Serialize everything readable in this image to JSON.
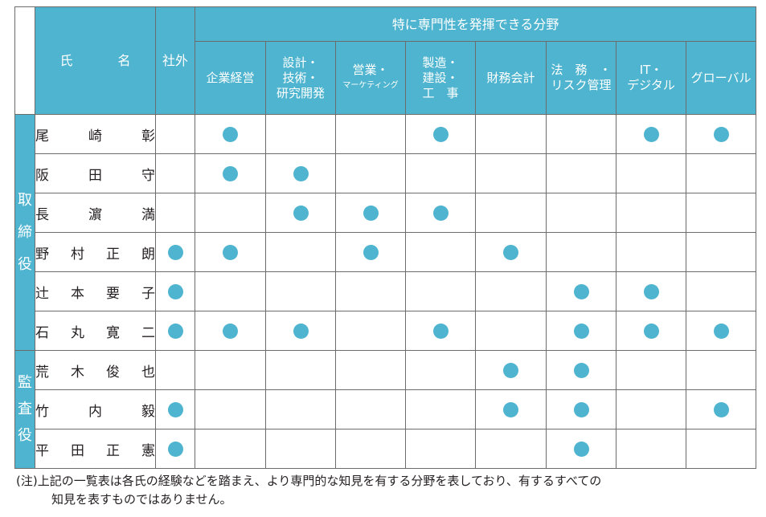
{
  "header": {
    "name_label_1": "氏",
    "name_label_2": "名",
    "external_label": "社外",
    "expertise_title": "特に専門性を発揮できる分野",
    "fields": [
      {
        "lines": [
          "企業経営"
        ]
      },
      {
        "lines": [
          "設計・",
          "技術・",
          "研究開発"
        ]
      },
      {
        "lines": [
          "営業・",
          "マーケティング"
        ]
      },
      {
        "lines": [
          "製造・",
          "建設・",
          "工　事"
        ]
      },
      {
        "lines": [
          "財務会計"
        ]
      },
      {
        "lines": [
          "法　務　・",
          "リスク管理"
        ]
      },
      {
        "lines": [
          "IT・",
          "デジタル"
        ]
      },
      {
        "lines": [
          "グローバル"
        ]
      }
    ]
  },
  "groups": [
    {
      "label": "取締役",
      "chars": [
        "取",
        "締",
        "役"
      ]
    },
    {
      "label": "監査役",
      "chars": [
        "監",
        "査",
        "役"
      ]
    }
  ],
  "rows": [
    {
      "group": 0,
      "name": [
        "尾",
        "崎",
        "彰"
      ],
      "external": false,
      "marks": [
        true,
        false,
        false,
        true,
        false,
        false,
        true,
        true
      ]
    },
    {
      "group": 0,
      "name": [
        "阪",
        "田",
        "守"
      ],
      "external": false,
      "marks": [
        true,
        true,
        false,
        false,
        false,
        false,
        false,
        false
      ]
    },
    {
      "group": 0,
      "name": [
        "長",
        "濵",
        "満"
      ],
      "external": false,
      "marks": [
        false,
        true,
        true,
        true,
        false,
        false,
        false,
        false
      ]
    },
    {
      "group": 0,
      "name": [
        "野",
        "村",
        "正",
        "朗"
      ],
      "external": true,
      "marks": [
        true,
        false,
        true,
        false,
        true,
        false,
        false,
        false
      ]
    },
    {
      "group": 0,
      "name": [
        "辻",
        "本",
        "要",
        "子"
      ],
      "external": true,
      "marks": [
        false,
        false,
        false,
        false,
        false,
        true,
        true,
        false
      ]
    },
    {
      "group": 0,
      "name": [
        "石",
        "丸",
        "寛",
        "二"
      ],
      "external": true,
      "marks": [
        true,
        true,
        false,
        true,
        false,
        true,
        true,
        true
      ]
    },
    {
      "group": 1,
      "name": [
        "荒",
        "木",
        "俊",
        "也"
      ],
      "external": false,
      "marks": [
        false,
        false,
        false,
        false,
        true,
        true,
        false,
        false
      ]
    },
    {
      "group": 1,
      "name": [
        "竹",
        "内",
        "毅"
      ],
      "external": true,
      "marks": [
        false,
        false,
        false,
        false,
        true,
        true,
        false,
        true
      ]
    },
    {
      "group": 1,
      "name": [
        "平",
        "田",
        "正",
        "憲"
      ],
      "external": true,
      "marks": [
        false,
        false,
        false,
        false,
        false,
        true,
        false,
        false
      ]
    }
  ],
  "note": {
    "line1": "(注)上記の一覧表は各氏の経験などを踏まえ、より専門的な知見を有する分野を表しており、有するすべての",
    "line2": "知見を表すものではありません。"
  },
  "colors": {
    "accent": "#4fb4cf",
    "border": "#6c6c6c"
  }
}
